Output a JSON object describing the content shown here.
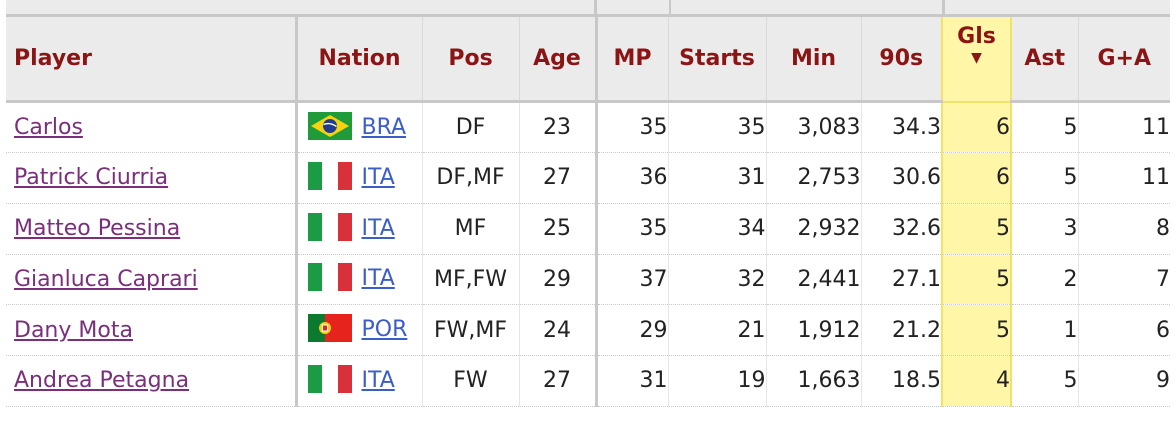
{
  "columns": {
    "player": "Player",
    "nation": "Nation",
    "pos": "Pos",
    "age": "Age",
    "mp": "MP",
    "starts": "Starts",
    "min": "Min",
    "nineties": "90s",
    "gls": "Gls",
    "sort_indicator": "▼",
    "ast": "Ast",
    "ga": "G+A"
  },
  "colors": {
    "header_text": "#8b1414",
    "sorted_column_bg": "#fff6a8",
    "player_link": "#7a2f7a",
    "nation_link": "#3b5dc9"
  },
  "rows": [
    {
      "player": "Carlos",
      "flag": "brazil-flag",
      "nation": "BRA",
      "pos": "DF",
      "age": "23",
      "mp": "35",
      "starts": "35",
      "min": "3,083",
      "nineties": "34.3",
      "gls": "6",
      "ast": "5",
      "ga": "11"
    },
    {
      "player": "Patrick Ciurria",
      "flag": "italy-flag",
      "nation": "ITA",
      "pos": "DF,MF",
      "age": "27",
      "mp": "36",
      "starts": "31",
      "min": "2,753",
      "nineties": "30.6",
      "gls": "6",
      "ast": "5",
      "ga": "11"
    },
    {
      "player": "Matteo Pessina",
      "flag": "italy-flag",
      "nation": "ITA",
      "pos": "MF",
      "age": "25",
      "mp": "35",
      "starts": "34",
      "min": "2,932",
      "nineties": "32.6",
      "gls": "5",
      "ast": "3",
      "ga": "8"
    },
    {
      "player": "Gianluca Caprari",
      "flag": "italy-flag",
      "nation": "ITA",
      "pos": "MF,FW",
      "age": "29",
      "mp": "37",
      "starts": "32",
      "min": "2,441",
      "nineties": "27.1",
      "gls": "5",
      "ast": "2",
      "ga": "7"
    },
    {
      "player": "Dany Mota",
      "flag": "portugal-flag",
      "nation": "POR",
      "pos": "FW,MF",
      "age": "24",
      "mp": "29",
      "starts": "21",
      "min": "1,912",
      "nineties": "21.2",
      "gls": "5",
      "ast": "1",
      "ga": "6"
    },
    {
      "player": "Andrea Petagna",
      "flag": "italy-flag",
      "nation": "ITA",
      "pos": "FW",
      "age": "27",
      "mp": "31",
      "starts": "19",
      "min": "1,663",
      "nineties": "18.5",
      "gls": "4",
      "ast": "5",
      "ga": "9"
    }
  ]
}
